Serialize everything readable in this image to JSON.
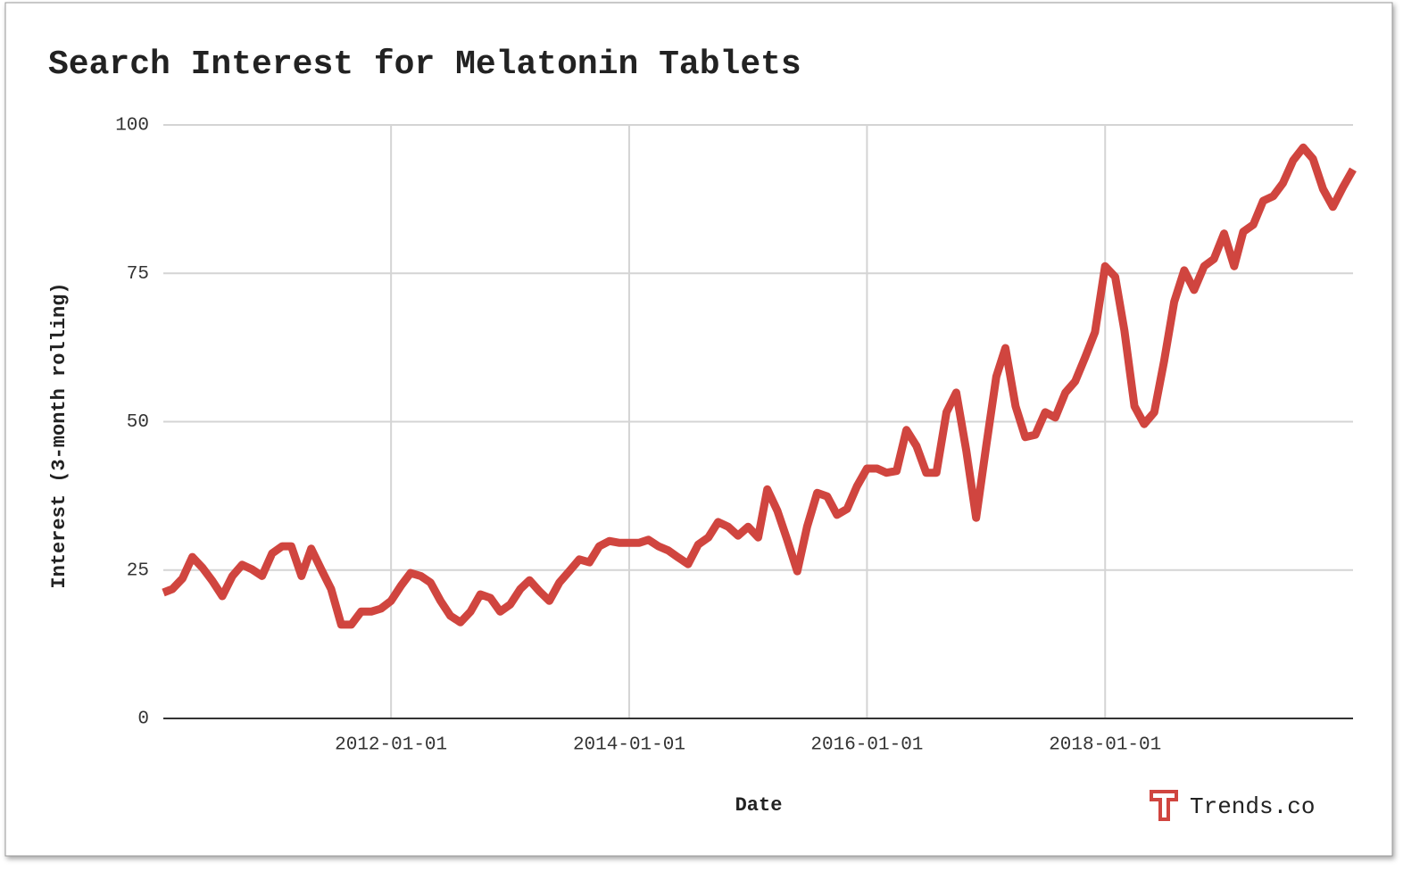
{
  "chart_data": {
    "type": "line",
    "title": "Search Interest for Melatonin Tablets",
    "x_label": "Date",
    "y_label": "Interest (3-month rolling)",
    "brand": "Trends.co",
    "x": [
      "2010-02-01",
      "2010-03-01",
      "2010-04-01",
      "2010-05-01",
      "2010-06-01",
      "2010-07-01",
      "2010-08-01",
      "2010-09-01",
      "2010-10-01",
      "2010-11-01",
      "2010-12-01",
      "2011-01-01",
      "2011-02-01",
      "2011-03-01",
      "2011-04-01",
      "2011-05-01",
      "2011-06-01",
      "2011-07-01",
      "2011-08-01",
      "2011-09-01",
      "2011-10-01",
      "2011-11-01",
      "2011-12-01",
      "2012-01-01",
      "2012-02-01",
      "2012-03-01",
      "2012-04-01",
      "2012-05-01",
      "2012-06-01",
      "2012-07-01",
      "2012-08-01",
      "2012-09-01",
      "2012-10-01",
      "2012-11-01",
      "2012-12-01",
      "2013-01-01",
      "2013-02-01",
      "2013-03-01",
      "2013-04-01",
      "2013-05-01",
      "2013-06-01",
      "2013-07-01",
      "2013-08-01",
      "2013-09-01",
      "2013-10-01",
      "2013-11-01",
      "2013-12-01",
      "2014-01-01",
      "2014-02-01",
      "2014-03-01",
      "2014-04-01",
      "2014-05-01",
      "2014-06-01",
      "2014-07-01",
      "2014-08-01",
      "2014-09-01",
      "2014-10-01",
      "2014-11-01",
      "2014-12-01",
      "2015-01-01",
      "2015-02-01",
      "2015-03-01",
      "2015-04-01",
      "2015-05-01",
      "2015-06-01",
      "2015-07-01",
      "2015-08-01",
      "2015-09-01",
      "2015-10-01",
      "2015-11-01",
      "2015-12-01",
      "2016-01-01",
      "2016-02-01",
      "2016-03-01",
      "2016-04-01",
      "2016-05-01",
      "2016-06-01",
      "2016-07-01",
      "2016-08-01",
      "2016-09-01",
      "2016-10-01",
      "2016-11-01",
      "2016-12-01",
      "2017-01-01",
      "2017-02-01",
      "2017-03-01",
      "2017-04-01",
      "2017-05-01",
      "2017-06-01",
      "2017-07-01",
      "2017-08-01",
      "2017-09-01",
      "2017-10-01",
      "2017-11-01",
      "2017-12-01",
      "2018-01-01",
      "2018-02-01",
      "2018-03-01",
      "2018-04-01",
      "2018-05-01",
      "2018-06-01",
      "2018-07-01",
      "2018-08-01",
      "2018-09-01",
      "2018-10-01",
      "2018-11-01",
      "2018-12-01",
      "2019-01-01",
      "2019-02-01",
      "2019-03-01",
      "2019-04-01",
      "2019-05-01",
      "2019-06-01",
      "2019-07-01",
      "2019-08-01",
      "2019-09-01",
      "2019-10-01",
      "2019-11-01",
      "2019-12-01",
      "2020-01-01",
      "2020-02-01"
    ],
    "series": [
      {
        "name": "Interest",
        "color": "#d0453f",
        "values": [
          21.2,
          21.8,
          23.6,
          27.2,
          25.4,
          23.2,
          20.6,
          24,
          25.9,
          25.1,
          24,
          27.8,
          29,
          29,
          24,
          28.6,
          25.1,
          21.8,
          15.8,
          15.8,
          18,
          18,
          18.5,
          19.8,
          22.4,
          24.5,
          24,
          22.9,
          19.8,
          17.3,
          16.2,
          18,
          20.9,
          20.3,
          18,
          19.2,
          21.8,
          23.3,
          21.4,
          19.8,
          22.9,
          24.8,
          26.8,
          26.3,
          29,
          29.9,
          29.6,
          29.6,
          29.6,
          30.1,
          29,
          28.3,
          27.1,
          26,
          29.3,
          30.5,
          33.1,
          32.3,
          30.8,
          32.3,
          30.5,
          38.6,
          35,
          30.1,
          24.8,
          32.3,
          38,
          37.4,
          34.3,
          35.3,
          39.1,
          42.1,
          42.1,
          41.4,
          41.7,
          48.6,
          45.9,
          41.4,
          41.4,
          51.6,
          54.9,
          45.1,
          33.8,
          45.9,
          57.6,
          62.4,
          52.6,
          47.4,
          47.8,
          51.6,
          50.7,
          54.9,
          56.8,
          60.9,
          65.1,
          76.2,
          74.4,
          65.4,
          52.6,
          49.6,
          51.6,
          60.2,
          70.2,
          75.5,
          72.2,
          76.2,
          77.4,
          81.7,
          76.2,
          82,
          83.2,
          87.2,
          88,
          90.2,
          94,
          96.2,
          94.3,
          89.2,
          86.2,
          89.5,
          92.5
        ]
      }
    ],
    "xlim": [
      "2010-02-01",
      "2020-02-01"
    ],
    "xticks": [
      "2012-01-01",
      "2014-01-01",
      "2016-01-01",
      "2018-01-01"
    ],
    "ylim": [
      0,
      100
    ],
    "yticks": [
      0,
      25,
      50,
      75,
      100
    ],
    "grid": true
  }
}
